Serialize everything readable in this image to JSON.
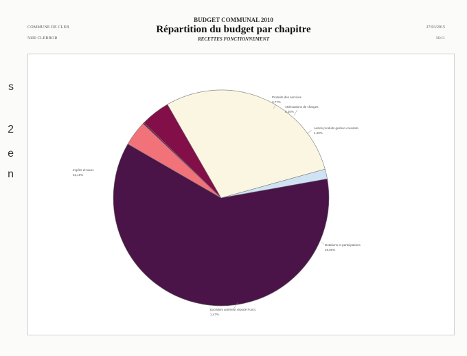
{
  "header": {
    "org_line1": "COMMUNE DE CLEB",
    "org_line2": "5000 CLERBOR",
    "date_line1": "27/03/2015",
    "date_line2": "16:11",
    "budget_label": "BUDGET COMMUNAL 2010",
    "title": "Répartition du budget par chapitre",
    "subtitle": "RECETTES FONCTIONNEMENT"
  },
  "side_fragments": [
    "s",
    "2",
    "e",
    "n"
  ],
  "colors": {
    "impots": "#4a1448",
    "produits": "#f2727a",
    "attenuations": "#6e0f45",
    "autres_produits": "#820f47",
    "dotations": "#fbf6e2",
    "excedent": "#cfe3f4",
    "pie_stroke": "#777777"
  },
  "chart_data": {
    "type": "pie",
    "title": "",
    "slices": [
      {
        "label": "Produits des services",
        "pct_label": "3,77%",
        "value": 3.77
      },
      {
        "label": "Atténuations de charges",
        "pct_label": "0,20%",
        "value": 0.2
      },
      {
        "label": "Autres produits gestion courante",
        "pct_label": "4,40%",
        "value": 4.4
      },
      {
        "label": "Dotations et participations",
        "pct_label": "29,00%",
        "value": 29.0
      },
      {
        "label": "Excédent antérieur reporté Fonct.",
        "pct_label": "1,47%",
        "value": 1.47
      },
      {
        "label": "Impôts et taxes",
        "pct_label": "61,16%",
        "value": 61.16
      }
    ]
  }
}
